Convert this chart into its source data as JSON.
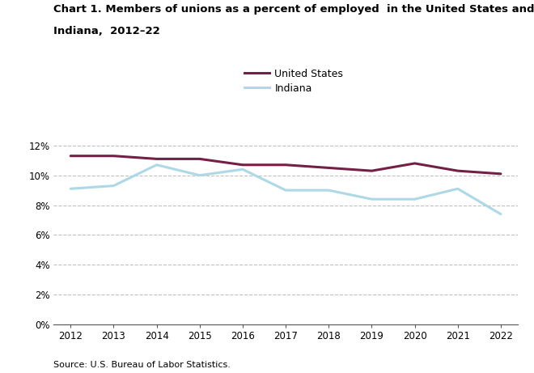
{
  "title_line1": "Chart 1. Members of unions as a percent of employed  in the United States and",
  "title_line2": "Indiana,  2012–22",
  "years": [
    2012,
    2013,
    2014,
    2015,
    2016,
    2017,
    2018,
    2019,
    2020,
    2021,
    2022
  ],
  "us_values": [
    11.3,
    11.3,
    11.1,
    11.1,
    10.7,
    10.7,
    10.5,
    10.3,
    10.8,
    10.3,
    10.1
  ],
  "in_values": [
    9.1,
    9.3,
    10.7,
    10.0,
    10.4,
    9.0,
    9.0,
    8.4,
    8.4,
    9.1,
    7.4
  ],
  "us_color": "#722045",
  "in_color": "#add8e6",
  "us_label": "United States",
  "in_label": "Indiana",
  "ylim": [
    0,
    13
  ],
  "yticks": [
    0,
    2,
    4,
    6,
    8,
    10,
    12
  ],
  "ytick_labels": [
    "0%",
    "2%",
    "4%",
    "6%",
    "8%",
    "10%",
    "12%"
  ],
  "source_text": "Source: U.S. Bureau of Labor Statistics.",
  "line_width": 2.2,
  "background_color": "#ffffff",
  "grid_color": "#c0c0c0"
}
